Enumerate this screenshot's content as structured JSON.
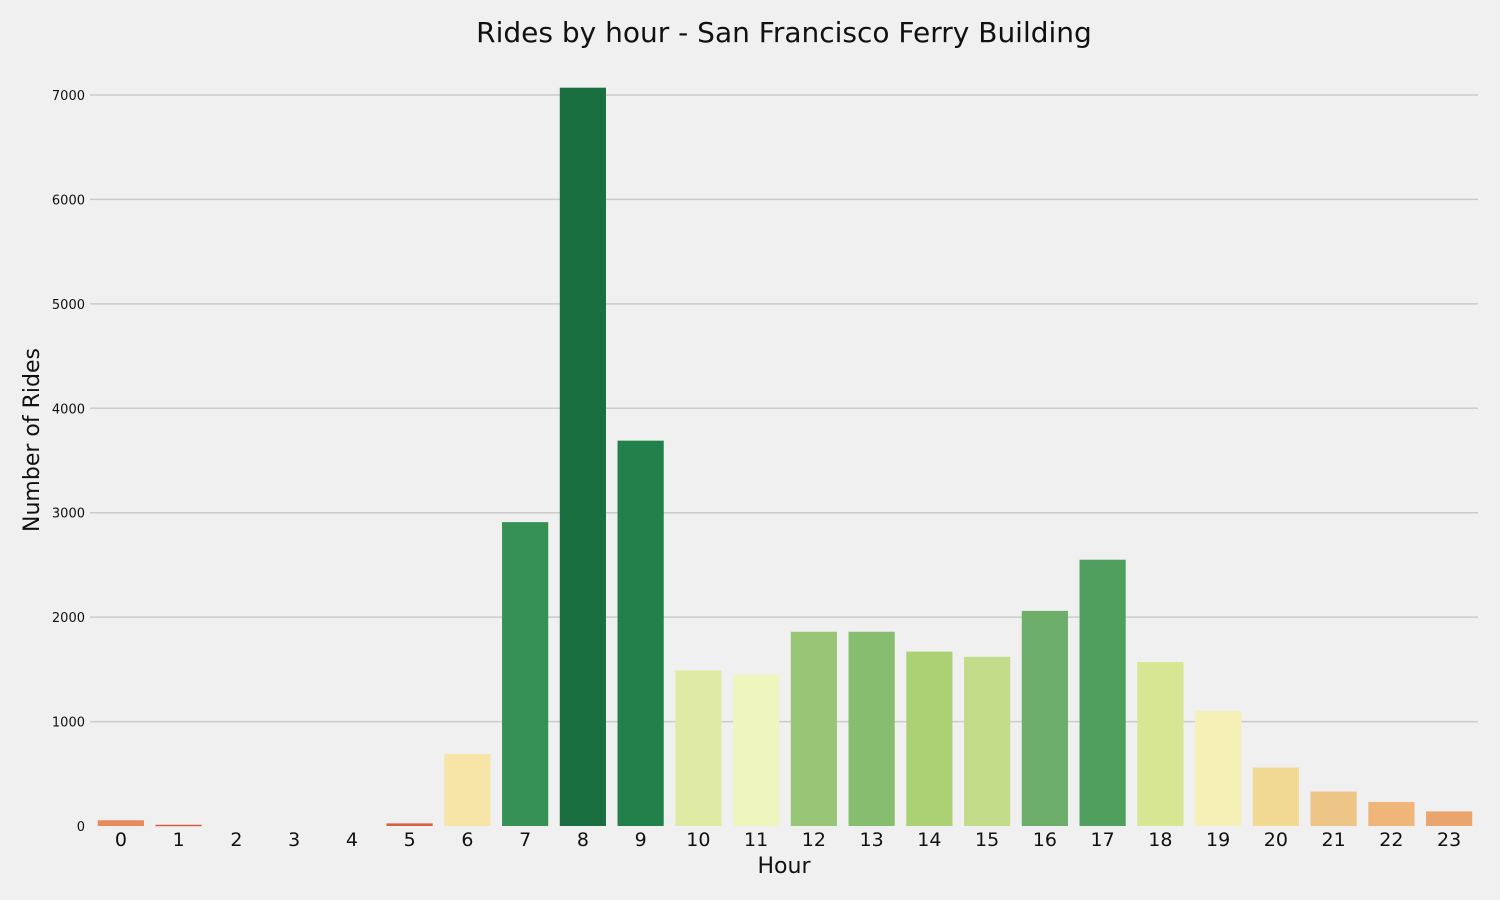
{
  "chart_data": {
    "type": "bar",
    "title": "Rides by hour - San Francisco Ferry Building",
    "xlabel": "Hour",
    "ylabel": "Number of Rides",
    "categories": [
      "0",
      "1",
      "2",
      "3",
      "4",
      "5",
      "6",
      "7",
      "8",
      "9",
      "10",
      "11",
      "12",
      "13",
      "14",
      "15",
      "16",
      "17",
      "18",
      "19",
      "20",
      "21",
      "22",
      "23"
    ],
    "values": [
      55,
      12,
      0,
      0,
      0,
      25,
      690,
      2910,
      7070,
      3690,
      1490,
      1450,
      1860,
      1860,
      1670,
      1620,
      2060,
      2550,
      1570,
      1100,
      560,
      330,
      230,
      140
    ],
    "colors": [
      "#e98a5a",
      "#d9603f",
      "#e9e9e9",
      "#e9e9e9",
      "#e9e9e9",
      "#d9603f",
      "#f6e5a6",
      "#369157",
      "#196f40",
      "#22804b",
      "#dfeba4",
      "#eff5be",
      "#99c676",
      "#87bd6f",
      "#acd175",
      "#c3dc8a",
      "#6daf6a",
      "#519f5f",
      "#d6e692",
      "#f5f1b6",
      "#f1d994",
      "#edc586",
      "#efb579",
      "#eaa56e"
    ],
    "ylim": [
      0,
      7300
    ],
    "yticks": [
      0,
      1000,
      2000,
      3000,
      4000,
      5000,
      6000,
      7000
    ],
    "grid": true,
    "legend": "none"
  }
}
